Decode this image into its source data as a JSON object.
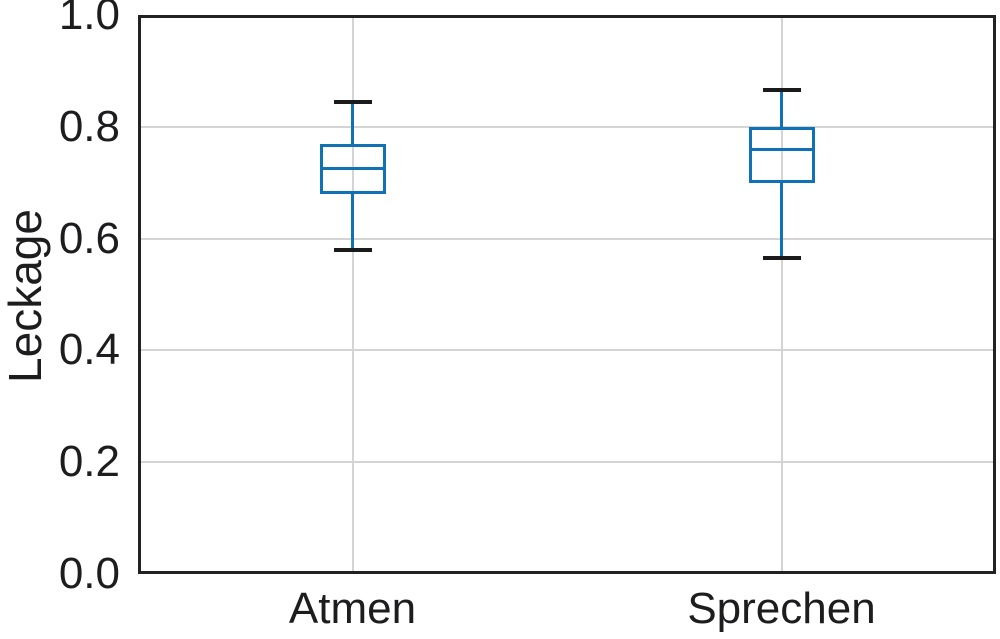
{
  "chart_data": {
    "type": "boxplot",
    "title": "",
    "xlabel": "",
    "ylabel": "Leckage",
    "categories": [
      "Atmen",
      "Sprechen"
    ],
    "ylim": [
      0.0,
      1.0
    ],
    "yticks": [
      0.0,
      0.2,
      0.4,
      0.6,
      0.8,
      1.0
    ],
    "ytick_labels": [
      "0.0",
      "0.2",
      "0.4",
      "0.6",
      "0.8",
      "1.0"
    ],
    "grid": true,
    "legend": false,
    "series": [
      {
        "name": "Atmen",
        "whisker_low": 0.58,
        "q1": 0.68,
        "median": 0.725,
        "q3": 0.77,
        "whisker_high": 0.845
      },
      {
        "name": "Sprechen",
        "whisker_low": 0.565,
        "q1": 0.7,
        "median": 0.76,
        "q3": 0.8,
        "whisker_high": 0.865
      }
    ]
  },
  "colors": {
    "box_stroke": "#1171b5",
    "whisker_line": "#1171b5",
    "whisker_cap": "#1a1a1a",
    "gridline": "#d4d4d4",
    "axis_frame": "#222222",
    "text": "#1d1d1f",
    "background": "#ffffff"
  }
}
